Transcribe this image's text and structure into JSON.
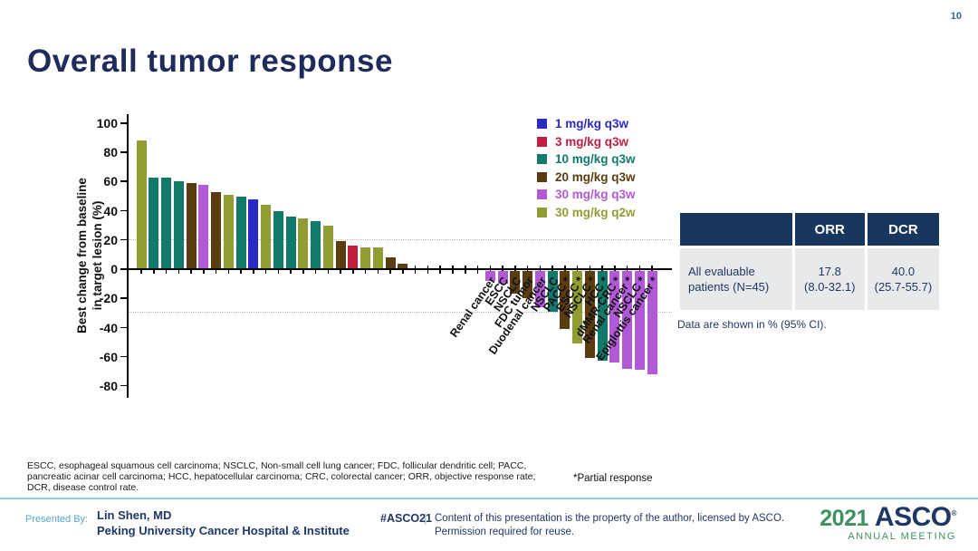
{
  "page_number": "10",
  "title": "Overall tumor response",
  "chart_data": {
    "type": "bar",
    "subtype": "waterfall",
    "title": "",
    "ylabel": "Best change from baseline\nin target lesion (%)",
    "ylim": [
      -80,
      100
    ],
    "yticks": [
      100,
      80,
      60,
      40,
      20,
      0,
      -20,
      -40,
      -60,
      -80
    ],
    "reference_lines": [
      20,
      -30
    ],
    "grid": "dotted-reference-only",
    "legend_position": "top-right",
    "colors": {
      "1 mg/kg q3w": "#2a2ac8",
      "3 mg/kg q3w": "#c01f40",
      "10 mg/kg q3w": "#117a6b",
      "20 mg/kg q3w": "#5a3c10",
      "30 mg/kg q3w": "#b259d8",
      "30 mg/kg q2w": "#919d33"
    },
    "legend": [
      {
        "label": "1 mg/kg q3w"
      },
      {
        "label": "3 mg/kg q3w"
      },
      {
        "label": "10 mg/kg q3w"
      },
      {
        "label": "20 mg/kg q3w"
      },
      {
        "label": "30 mg/kg q3w"
      },
      {
        "label": "30 mg/kg q2w"
      }
    ],
    "empty_slots_after_positive": 6,
    "bars": [
      {
        "value": 88,
        "dose": "30 mg/kg q2w",
        "label": ""
      },
      {
        "value": 63,
        "dose": "10 mg/kg q3w",
        "label": ""
      },
      {
        "value": 63,
        "dose": "10 mg/kg q3w",
        "label": ""
      },
      {
        "value": 60,
        "dose": "10 mg/kg q3w",
        "label": ""
      },
      {
        "value": 59,
        "dose": "20 mg/kg q3w",
        "label": ""
      },
      {
        "value": 58,
        "dose": "30 mg/kg q3w",
        "label": ""
      },
      {
        "value": 53,
        "dose": "20 mg/kg q3w",
        "label": ""
      },
      {
        "value": 51,
        "dose": "30 mg/kg q2w",
        "label": ""
      },
      {
        "value": 50,
        "dose": "10 mg/kg q3w",
        "label": ""
      },
      {
        "value": 48,
        "dose": "1 mg/kg q3w",
        "label": ""
      },
      {
        "value": 44,
        "dose": "30 mg/kg q2w",
        "label": ""
      },
      {
        "value": 40,
        "dose": "10 mg/kg q3w",
        "label": ""
      },
      {
        "value": 36,
        "dose": "10 mg/kg q3w",
        "label": ""
      },
      {
        "value": 35,
        "dose": "30 mg/kg q2w",
        "label": ""
      },
      {
        "value": 33,
        "dose": "10 mg/kg q3w",
        "label": ""
      },
      {
        "value": 30,
        "dose": "30 mg/kg q2w",
        "label": ""
      },
      {
        "value": 19,
        "dose": "20 mg/kg q3w",
        "label": ""
      },
      {
        "value": 16,
        "dose": "3 mg/kg q3w",
        "label": ""
      },
      {
        "value": 15,
        "dose": "30 mg/kg q2w",
        "label": ""
      },
      {
        "value": 15,
        "dose": "30 mg/kg q2w",
        "label": ""
      },
      {
        "value": 8,
        "dose": "20 mg/kg q3w",
        "label": ""
      },
      {
        "value": 4,
        "dose": "20 mg/kg q3w",
        "label": ""
      },
      {
        "value": -7,
        "dose": "30 mg/kg q3w",
        "label": "Renal cancer"
      },
      {
        "value": -9,
        "dose": "30 mg/kg q3w",
        "label": "ESCC"
      },
      {
        "value": -16,
        "dose": "20 mg/kg q3w",
        "label": "NSCLC"
      },
      {
        "value": -19,
        "dose": "20 mg/kg q3w",
        "label": "FDC tumor"
      },
      {
        "value": -25,
        "dose": "30 mg/kg q3w",
        "label": "Duodenal cancer"
      },
      {
        "value": -28,
        "dose": "10 mg/kg q3w",
        "label": "NSCLC"
      },
      {
        "value": -40,
        "dose": "20 mg/kg q3w",
        "label": "PACC *"
      },
      {
        "value": -50,
        "dose": "30 mg/kg q2w",
        "label": "ESCC *"
      },
      {
        "value": -60,
        "dose": "20 mg/kg q3w",
        "label": "NSCLC *"
      },
      {
        "value": -62,
        "dose": "10 mg/kg q3w",
        "label": "HCC *"
      },
      {
        "value": -63,
        "dose": "30 mg/kg q3w",
        "label": "dMMR-CRC *"
      },
      {
        "value": -67,
        "dose": "30 mg/kg q3w",
        "label": "Renal cancer *"
      },
      {
        "value": -68,
        "dose": "30 mg/kg q3w",
        "label": "NSCLC *"
      },
      {
        "value": -71,
        "dose": "30 mg/kg q3w",
        "label": "Epiglottis cancer *"
      }
    ]
  },
  "table": {
    "header": {
      "label": "",
      "orr": "ORR",
      "dcr": "DCR"
    },
    "rows": [
      {
        "label": "All evaluable\npatients (N=45)",
        "orr": "17.8\n(8.0-32.1)",
        "dcr": "40.0\n(25.7-55.7)"
      }
    ],
    "caption": "Data are shown in % (95% CI)."
  },
  "footnote": "ESCC, esophageal squamous cell carcinoma; NSCLC, Non-small cell lung cancer; FDC, follicular dendritic cell; PACC,\npancreatic acinar cell carcinoma; HCC, hepatocellular carcinoma; CRC, colorectal cancer; ORR, objective response rate;\nDCR, disease control rate.",
  "partial_note": "*Partial response",
  "footer": {
    "presented_by_label": "Presented By:",
    "presenter": "Lin Shen, MD\nPeking University Cancer Hospital & Institute",
    "hashtag": "#ASCO21",
    "pipe": "|",
    "rights": "Content of this presentation is the property of the author, licensed by ASCO.\nPermission required for reuse.",
    "logo": {
      "year": "2021",
      "org": "ASCO",
      "reg": "®",
      "sub": "ANNUAL MEETING"
    }
  },
  "theme": {
    "navy": "#1f2b5b",
    "table_header": "#17375e",
    "footer_line": "#8ed0d8",
    "logo_green": "#3f9160",
    "page_num_color": "#2d6a8f"
  }
}
